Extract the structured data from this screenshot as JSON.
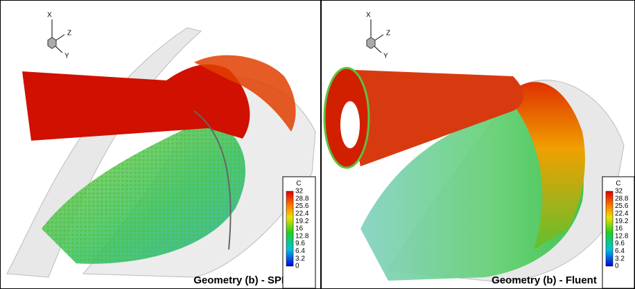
{
  "panels": [
    {
      "caption": "Geometry (b) - SPH",
      "axes": {
        "x": "X",
        "y": "Y",
        "z": "Z"
      },
      "colorbar": {
        "title": "C",
        "ticks": [
          "32",
          "28.8",
          "25.6",
          "22.4",
          "19.2",
          "16",
          "12.8",
          "9.6",
          "6.4",
          "3.2",
          "0"
        ]
      }
    },
    {
      "caption": "Geometry (b) - Fluent",
      "axes": {
        "x": "X",
        "y": "Y",
        "z": "Z"
      },
      "colorbar": {
        "title": "C",
        "ticks": [
          "32",
          "28.8",
          "25.6",
          "22.4",
          "19.2",
          "16",
          "12.8",
          "9.6",
          "6.4",
          "3.2",
          "0"
        ]
      }
    }
  ]
}
